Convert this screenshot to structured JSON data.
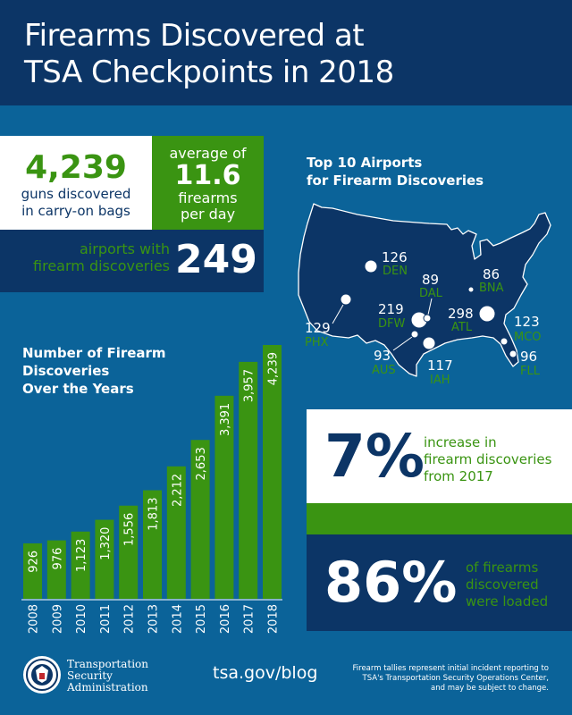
{
  "header": {
    "title_line1": "Firearms Discovered at",
    "title_line2": "TSA Checkpoints in 2018"
  },
  "stats": {
    "total_number": "4,239",
    "total_label_line1": "guns discovered",
    "total_label_line2": "in carry-on bags",
    "average_prefix": "average of",
    "average_number": "11.6",
    "average_suffix_line1": "firearms",
    "average_suffix_line2": "per day",
    "airports_label_line1": "airports with",
    "airports_label_line2": "firearm discoveries",
    "airports_number": "249",
    "increase_percent": "7%",
    "increase_label_line1": "increase in",
    "increase_label_line2": "firearm discoveries",
    "increase_label_line3": "from 2017",
    "loaded_percent": "86%",
    "loaded_label_line1": "of firearms",
    "loaded_label_line2": "discovered",
    "loaded_label_line3": "were loaded"
  },
  "map": {
    "title_line1": "Top 10 Airports",
    "title_line2": "for Firearm Discoveries",
    "airports": [
      {
        "code": "ATL",
        "count": "298"
      },
      {
        "code": "DFW",
        "count": "219"
      },
      {
        "code": "PHX",
        "count": "129"
      },
      {
        "code": "DEN",
        "count": "126"
      },
      {
        "code": "MCO",
        "count": "123"
      },
      {
        "code": "IAH",
        "count": "117"
      },
      {
        "code": "FLL",
        "count": "96"
      },
      {
        "code": "AUS",
        "count": "93"
      },
      {
        "code": "DAL",
        "count": "89"
      },
      {
        "code": "BNA",
        "count": "86"
      }
    ]
  },
  "chart_data": {
    "type": "bar",
    "title": "Number of Firearm Discoveries Over the Years",
    "title_line1": "Number of Firearm",
    "title_line2": "Discoveries",
    "title_line3": "Over the Years",
    "categories": [
      "2008",
      "2009",
      "2010",
      "2011",
      "2012",
      "2013",
      "2014",
      "2015",
      "2016",
      "2017",
      "2018"
    ],
    "values": [
      926,
      976,
      1123,
      1320,
      1556,
      1813,
      2212,
      2653,
      3391,
      3957,
      4239
    ],
    "value_labels": [
      "926",
      "976",
      "1,123",
      "1,320",
      "1,556",
      "1,813",
      "2,212",
      "2,653",
      "3,391",
      "3,957",
      "4,239"
    ],
    "xlabel": "",
    "ylabel": "",
    "grid": false,
    "bar_color": "#3a9412"
  },
  "footer": {
    "org_line1": "Transportation",
    "org_line2": "Security",
    "org_line3": "Administration",
    "url": "tsa.gov/blog",
    "note_line1": "Firearm tallies represent initial incident reporting to",
    "note_line2": "TSA's Transportation Security Operations Center,",
    "note_line3": "and may be subject to change."
  },
  "colors": {
    "navy": "#0c3566",
    "blue": "#0b6399",
    "green": "#3a9412",
    "white": "#ffffff"
  }
}
